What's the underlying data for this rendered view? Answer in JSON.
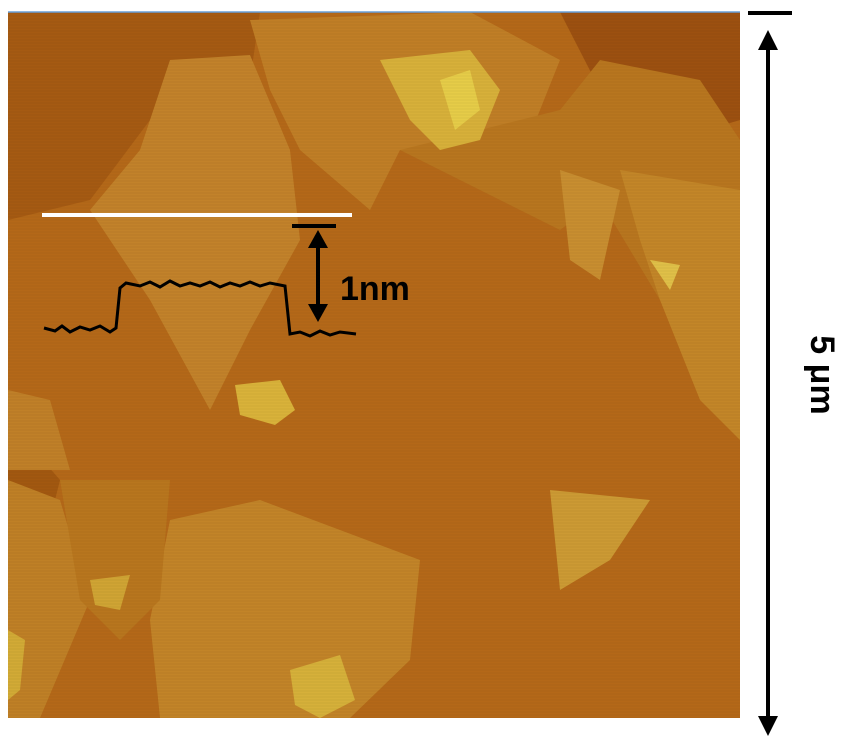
{
  "labels": {
    "height": "1nm",
    "scale": "5 μm"
  }
}
